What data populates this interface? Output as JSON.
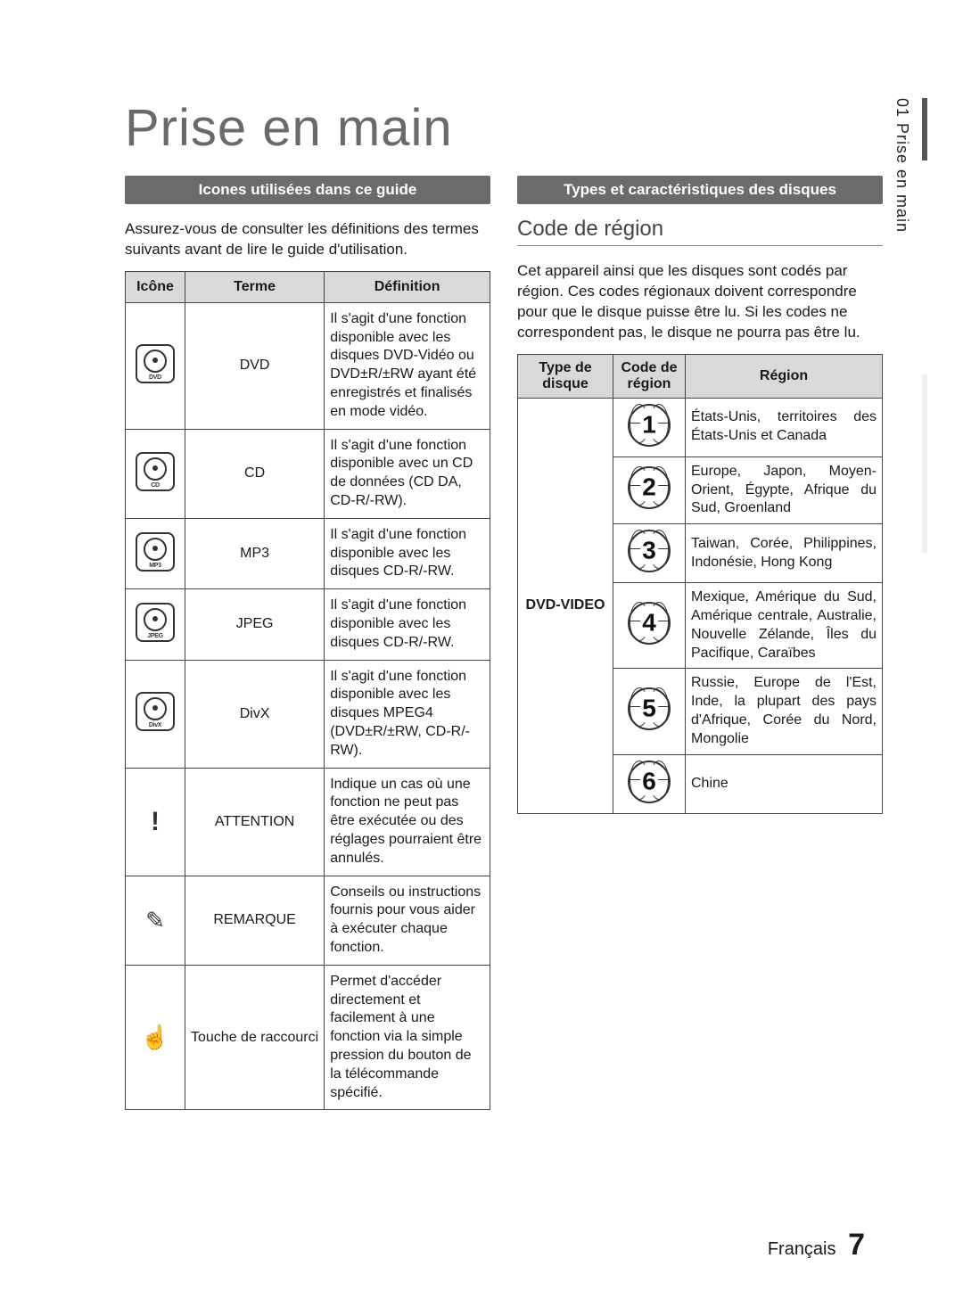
{
  "side_tab": "01  Prise en main",
  "main_title": "Prise en main",
  "left": {
    "section_bar": "Icones utilisées dans ce guide",
    "intro": "Assurez-vous de consulter les définitions des termes suivants avant de lire le guide d'utilisation.",
    "headers": {
      "icon": "Icône",
      "term": "Terme",
      "def": "Définition"
    },
    "rows": [
      {
        "icon_type": "disc",
        "icon_label": "DVD",
        "term": "DVD",
        "def": "Il s'agit d'une fonction disponible avec les disques DVD-Vidéo ou DVD±R/±RW ayant été enregistrés et finalisés en mode vidéo."
      },
      {
        "icon_type": "disc",
        "icon_label": "CD",
        "term": "CD",
        "def": "Il s'agit d'une fonction disponible avec un CD de données (CD DA, CD-R/-RW)."
      },
      {
        "icon_type": "disc",
        "icon_label": "MP3",
        "term": "MP3",
        "def": "Il s'agit d'une fonction disponible avec les disques CD-R/-RW."
      },
      {
        "icon_type": "disc",
        "icon_label": "JPEG",
        "term": "JPEG",
        "def": "Il s'agit d'une fonction disponible avec les disques CD-R/-RW."
      },
      {
        "icon_type": "disc",
        "icon_label": "DivX",
        "term": "DivX",
        "def": "Il s'agit d'une fonction disponible avec les disques MPEG4 (DVD±R/±RW, CD-R/-RW)."
      },
      {
        "icon_type": "attn",
        "term": "ATTENTION",
        "def": "Indique un cas où une fonction ne peut pas être exécutée ou des réglages pourraient être annulés."
      },
      {
        "icon_type": "note",
        "term": "REMARQUE",
        "def": "Conseils ou instructions fournis pour vous aider à exécuter chaque fonction."
      },
      {
        "icon_type": "shortcut",
        "term": "Touche de raccourci",
        "def": "Permet d'accéder directement et facilement à une fonction via la simple pression du bouton de la télécommande spécifié."
      }
    ]
  },
  "right": {
    "section_bar": "Types et caractéristiques des disques",
    "sub_title": "Code de région",
    "intro": "Cet appareil ainsi que les disques sont codés par région. Ces codes régionaux doivent correspondre pour que le disque puisse être lu. Si les codes ne correspondent pas, le disque ne pourra pas être lu.",
    "headers": {
      "type": "Type de disque",
      "code": "Code de région",
      "region": "Région"
    },
    "disc_type": "DVD-VIDEO",
    "rows": [
      {
        "code": "1",
        "region": "États-Unis, territoires des États-Unis et Canada"
      },
      {
        "code": "2",
        "region": "Europe, Japon, Moyen-Orient, Égypte, Afrique du Sud, Groenland"
      },
      {
        "code": "3",
        "region": "Taiwan, Corée, Philippines, Indonésie, Hong Kong"
      },
      {
        "code": "4",
        "region": "Mexique, Amérique du Sud, Amérique centrale, Australie, Nouvelle Zélande, Îles du Pacifique, Caraïbes"
      },
      {
        "code": "5",
        "region": "Russie, Europe de l'Est, Inde, la plupart des pays d'Afrique, Corée du Nord, Mongolie"
      },
      {
        "code": "6",
        "region": "Chine"
      }
    ]
  },
  "footer": {
    "lang": "Français",
    "page": "7"
  },
  "colors": {
    "section_bar_bg": "#6b6b6b",
    "section_bar_fg": "#ffffff",
    "th_bg": "#d9d9d9",
    "border": "#444444",
    "title_color": "#6a6a6a"
  }
}
